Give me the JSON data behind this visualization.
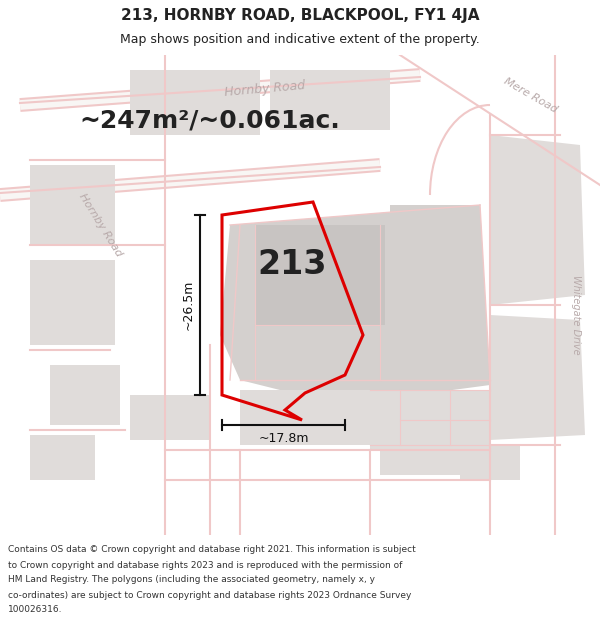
{
  "title": "213, HORNBY ROAD, BLACKPOOL, FY1 4JA",
  "subtitle": "Map shows position and indicative extent of the property.",
  "area_label": "~247m²/~0.061ac.",
  "property_number": "213",
  "dim_width": "~17.8m",
  "dim_height": "~26.5m",
  "footer_lines": [
    "Contains OS data © Crown copyright and database right 2021. This information is subject",
    "to Crown copyright and database rights 2023 and is reproduced with the permission of",
    "HM Land Registry. The polygons (including the associated geometry, namely x, y",
    "co-ordinates) are subject to Crown copyright and database rights 2023 Ordnance Survey",
    "100026316."
  ],
  "map_bg": "#f5f2f0",
  "road_color": "#f0c8c8",
  "block_light": "#e0dcda",
  "block_mid": "#d4d0ce",
  "block_dark": "#c8c4c2",
  "plot_edge": "#dd0000",
  "dim_color": "#111111",
  "road_label_color": "#b8aaaa",
  "text_color": "#222222",
  "footer_color": "#333333",
  "white": "#ffffff",
  "fig_width": 6.0,
  "fig_height": 6.25,
  "title_fontsize": 11,
  "subtitle_fontsize": 9,
  "area_fontsize": 18,
  "num_fontsize": 24,
  "dim_fontsize": 9,
  "road_label_fontsize": 9,
  "footer_fontsize": 6.5
}
